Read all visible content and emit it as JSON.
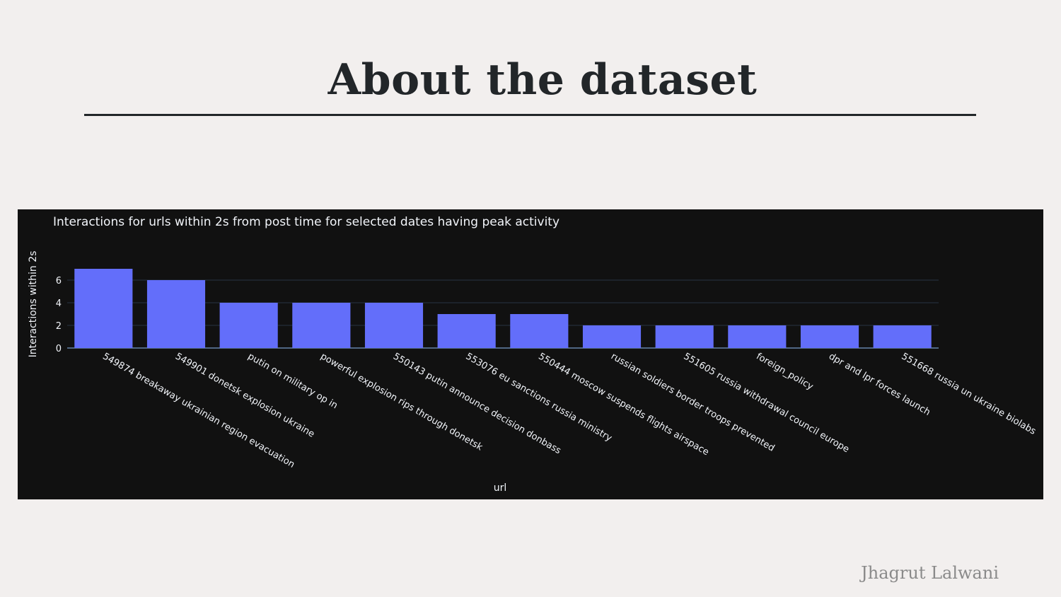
{
  "slide": {
    "title": "About the dataset",
    "author": "Jhagrut Lalwani"
  },
  "colors": {
    "background": "#f2efee",
    "chart_background": "#111111",
    "bar": "#636efa",
    "text_dark": "#222629",
    "chart_text": "#f2f5fa",
    "gridline": "#283442"
  },
  "chart_data": {
    "type": "bar",
    "title": "Interactions for urls within 2s from post time for selected dates having peak activity",
    "xlabel": "url",
    "ylabel": "Interactions within 2s",
    "categories": [
      "549874 breakaway ukrainian region evacuation",
      "549901 donetsk explosion ukraine",
      "putin on military op in",
      "powerful explosion rips through donetsk",
      "550143 putin announce decision donbass",
      "553076 eu sanctions russia ministry",
      "550444 moscow suspends flights airspace",
      "russian soldiers border troops prevented",
      "551605 russia withdrawal council europe",
      "foreign_policy",
      "dpr and lpr forces launch",
      "551668 russia un ukraine biolabs"
    ],
    "values": [
      7,
      6,
      4,
      4,
      4,
      3,
      3,
      2,
      2,
      2,
      2,
      2
    ],
    "yticks": [
      0,
      2,
      4,
      6
    ],
    "ylim": [
      0,
      7.37
    ],
    "grid": true,
    "theme": "dark"
  }
}
